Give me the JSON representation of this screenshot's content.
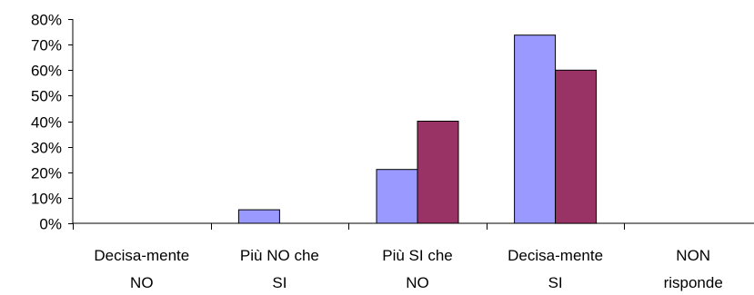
{
  "chart_data": {
    "type": "bar",
    "categories": [
      [
        "Decisa-mente",
        "NO"
      ],
      [
        "Più NO che",
        "SI"
      ],
      [
        "Più SI che",
        "NO"
      ],
      [
        "Decisa-mente",
        "SI"
      ],
      [
        "NON",
        "risponde"
      ]
    ],
    "series": [
      {
        "values": [
          0,
          5.3,
          21.1,
          73.7,
          0
        ],
        "color": "#9999ff"
      },
      {
        "values": [
          0,
          0,
          40,
          60,
          0
        ],
        "color": "#993366"
      }
    ],
    "ylim": [
      0,
      80
    ],
    "yticks": [
      "0%",
      "10%",
      "20%",
      "30%",
      "40%",
      "50%",
      "60%",
      "70%",
      "80%"
    ],
    "ytick_values": [
      0,
      10,
      20,
      30,
      40,
      50,
      60,
      70,
      80
    ],
    "grid": false,
    "legend": "none"
  }
}
